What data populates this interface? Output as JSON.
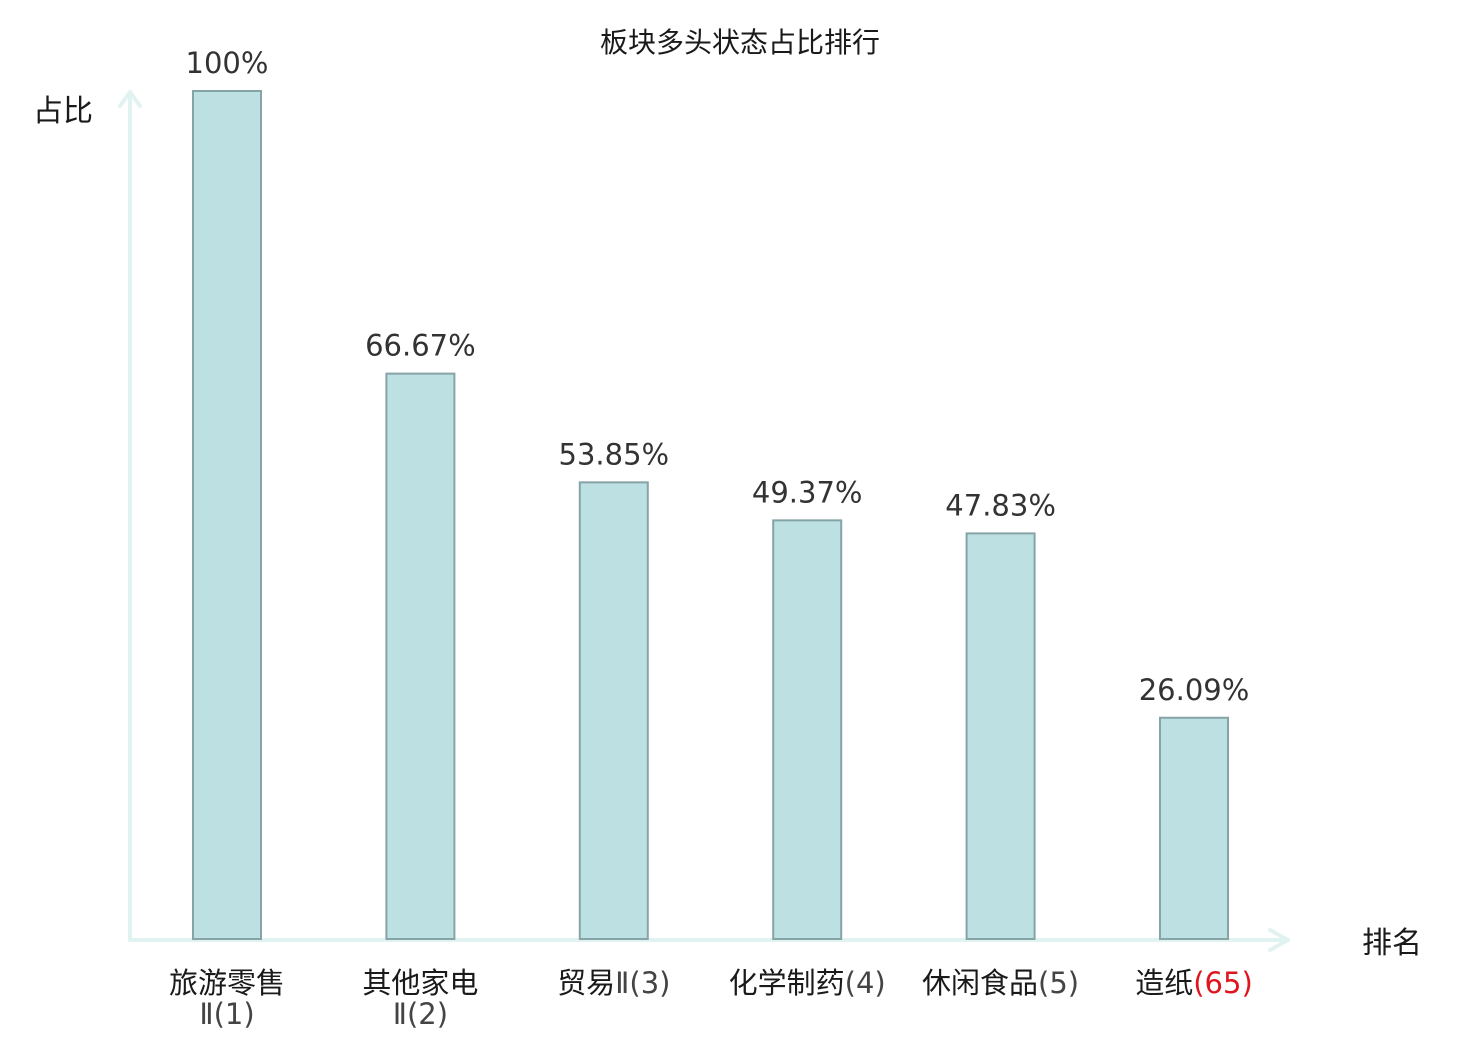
{
  "chart_data": {
    "type": "bar",
    "title": "板块多头状态占比排行",
    "ylabel": "占比",
    "xlabel": "排名",
    "ylim": [
      0,
      100
    ],
    "grid": false,
    "categories": [
      {
        "name": "旅游零售",
        "rank": "Ⅱ(1)",
        "rank_on_new_line": true,
        "highlight": false
      },
      {
        "name": "其他家电",
        "rank": "Ⅱ(2)",
        "rank_on_new_line": true,
        "highlight": false
      },
      {
        "name": "贸易",
        "rank": "Ⅱ(3)",
        "rank_on_new_line": false,
        "highlight": false
      },
      {
        "name": "化学制药",
        "rank": "(4)",
        "rank_on_new_line": false,
        "highlight": false
      },
      {
        "name": "休闲食品",
        "rank": "(5)",
        "rank_on_new_line": false,
        "highlight": false
      },
      {
        "name": "造纸",
        "rank": "(65)",
        "rank_on_new_line": false,
        "highlight": true
      }
    ],
    "values": [
      100,
      66.67,
      53.85,
      49.37,
      47.83,
      26.09
    ],
    "value_labels": [
      "100%",
      "66.67%",
      "53.85%",
      "49.37%",
      "47.83%",
      "26.09%"
    ]
  },
  "colors": {
    "bar_fill": "#bde0e3",
    "bar_stroke": "#86a4a7",
    "axis": "#e1f3f1",
    "highlight": "#e0141e",
    "text": "#1a1a1a",
    "value_text": "#333333"
  }
}
